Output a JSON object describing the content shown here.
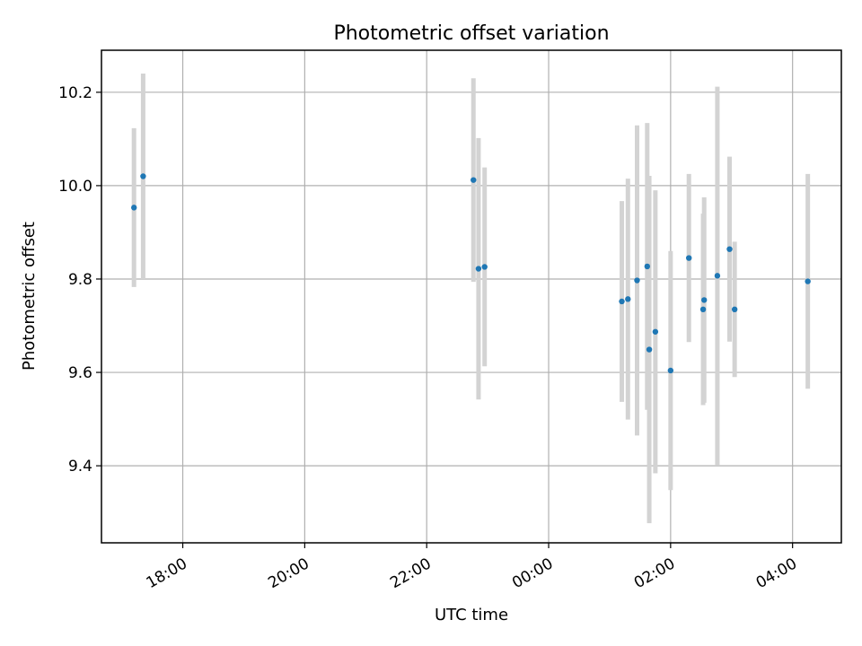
{
  "chart_data": {
    "type": "scatter",
    "title": "Photometric offset variation",
    "xlabel": "UTC time",
    "ylabel": "Photometric offset",
    "x_unit": "hours",
    "xlim": [
      "16:40",
      "04:48"
    ],
    "ylim": [
      9.235,
      10.29
    ],
    "x_ticks": [
      "18:00",
      "20:00",
      "22:00",
      "00:00",
      "02:00",
      "04:00"
    ],
    "y_ticks": [
      9.4,
      9.6,
      9.8,
      10.0,
      10.2
    ],
    "grid": true,
    "colors": {
      "point": "#1f77b4",
      "errorbar": "#d3d3d3"
    },
    "series": [
      {
        "points": [
          {
            "x": "17:12",
            "y": 9.953,
            "yerr": 0.17
          },
          {
            "x": "17:21",
            "y": 10.02,
            "yerr": 0.22
          },
          {
            "x": "22:46",
            "y": 10.012,
            "yerr": 0.218
          },
          {
            "x": "22:51",
            "y": 9.822,
            "yerr": 0.28
          },
          {
            "x": "22:57",
            "y": 9.826,
            "yerr": 0.213
          },
          {
            "x": "01:12",
            "y": 9.752,
            "yerr": 0.215
          },
          {
            "x": "01:18",
            "y": 9.757,
            "yerr": 0.258
          },
          {
            "x": "01:27",
            "y": 9.797,
            "yerr": 0.332
          },
          {
            "x": "01:37",
            "y": 9.827,
            "yerr": 0.307
          },
          {
            "x": "01:39",
            "y": 9.649,
            "yerr": 0.372
          },
          {
            "x": "01:45",
            "y": 9.687,
            "yerr": 0.303
          },
          {
            "x": "02:00",
            "y": 9.604,
            "yerr": 0.256
          },
          {
            "x": "02:18",
            "y": 9.845,
            "yerr": 0.18
          },
          {
            "x": "02:32",
            "y": 9.735,
            "yerr": 0.205
          },
          {
            "x": "02:33",
            "y": 9.755,
            "yerr": 0.22
          },
          {
            "x": "02:46",
            "y": 9.807,
            "yerr": 0.405
          },
          {
            "x": "02:58",
            "y": 9.864,
            "yerr": 0.198
          },
          {
            "x": "03:03",
            "y": 9.735,
            "yerr": 0.145
          },
          {
            "x": "04:15",
            "y": 9.795,
            "yerr": 0.23
          }
        ]
      }
    ]
  }
}
